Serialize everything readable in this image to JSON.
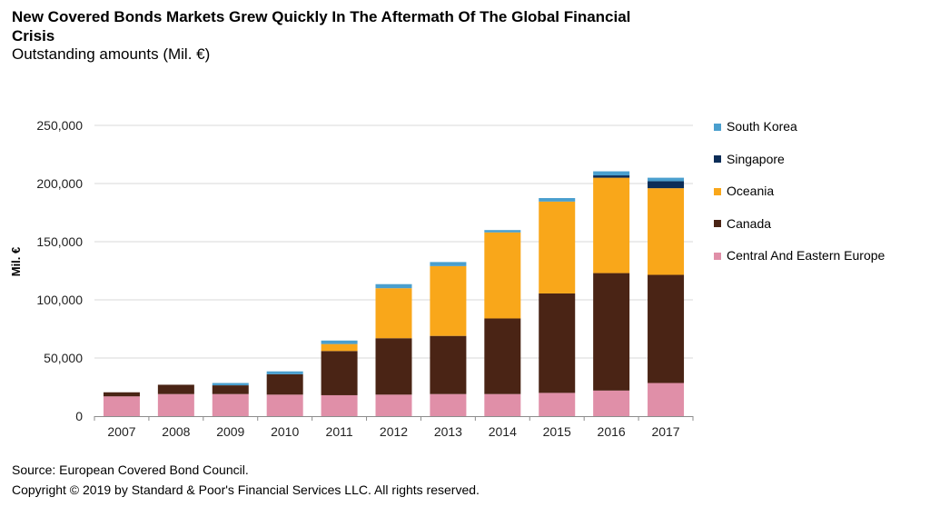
{
  "title": "New Covered Bonds Markets Grew Quickly In The Aftermath Of The Global Financial Crisis",
  "subtitle": "Outstanding amounts (Mil. €)",
  "source": "Source: European Covered Bond Council.",
  "copyright": "Copyright © 2019 by Standard & Poor's Financial Services LLC. All rights reserved.",
  "legend": [
    {
      "label": "South Korea",
      "color": "#4a9fce"
    },
    {
      "label": "Singapore",
      "color": "#0c2d57"
    },
    {
      "label": "Oceania",
      "color": "#f9a71a"
    },
    {
      "label": "Canada",
      "color": "#4a2415"
    },
    {
      "label": "Central And Eastern Europe",
      "color": "#e08fa8"
    }
  ],
  "chart_data": {
    "type": "bar",
    "stacked": true,
    "categories": [
      "2007",
      "2008",
      "2009",
      "2010",
      "2011",
      "2012",
      "2013",
      "2014",
      "2015",
      "2016",
      "2017"
    ],
    "ylabel": "Mil. €",
    "ylim": [
      0,
      250000
    ],
    "yticks": [
      0,
      50000,
      100000,
      150000,
      200000,
      250000
    ],
    "ytick_labels": [
      "0",
      "50,000",
      "100,000",
      "150,000",
      "200,000",
      "250,000"
    ],
    "grid": true,
    "legend_position": "right",
    "series": [
      {
        "name": "Central And Eastern Europe",
        "color": "#e08fa8",
        "values": [
          17000,
          19000,
          19000,
          18500,
          18000,
          18500,
          19000,
          19000,
          20000,
          22000,
          28500
        ]
      },
      {
        "name": "Canada",
        "color": "#4a2415",
        "values": [
          3500,
          8000,
          7500,
          17500,
          38000,
          48500,
          50000,
          65000,
          85500,
          101000,
          93000
        ]
      },
      {
        "name": "Oceania",
        "color": "#f9a71a",
        "values": [
          0,
          0,
          0,
          0,
          6000,
          43000,
          60000,
          74000,
          79000,
          82000,
          74500
        ]
      },
      {
        "name": "Singapore",
        "color": "#0c2d57",
        "values": [
          0,
          0,
          0,
          0,
          0,
          0,
          0,
          0,
          0,
          2000,
          6000
        ]
      },
      {
        "name": "South Korea",
        "color": "#4a9fce",
        "values": [
          0,
          0,
          2000,
          2500,
          3000,
          3500,
          3500,
          2000,
          3000,
          3500,
          3000
        ]
      }
    ]
  }
}
